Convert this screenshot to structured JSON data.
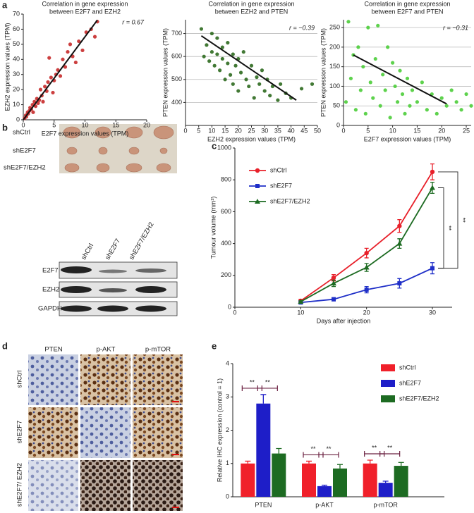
{
  "figure": {
    "panel_labels": [
      "a",
      "b",
      "c",
      "d",
      "e"
    ],
    "panel_b": {
      "row_labels": [
        "shCtrl",
        "shE2F7",
        "shE2F7/EZH2"
      ],
      "blot_columns": [
        "shCtrl",
        "shE2F7",
        "shE2F7/EZH2"
      ],
      "blot_rows": [
        "E2F7",
        "EZH2",
        "GAPDH"
      ]
    },
    "panel_d": {
      "columns": [
        "PTEN",
        "p-AKT",
        "p-mTOR"
      ],
      "rows": [
        "shCtrl",
        "shE2F7",
        "shE2F7/ EZH2"
      ]
    }
  },
  "chart_data": [
    {
      "type": "scatter",
      "title": [
        "Correlation in gene expression",
        "between E2F7 and EZH2"
      ],
      "xlabel": "E2F7 expression values (TPM)",
      "ylabel": "EZH2 expression values (TPM)",
      "annotation": "r = 0.67",
      "color": "#c62a2a",
      "grid": false,
      "xlim": [
        0,
        20
      ],
      "xticks": [
        0,
        5,
        10,
        15,
        20
      ],
      "ylim": [
        0,
        70
      ],
      "yticks": [
        0,
        10,
        20,
        30,
        40,
        50,
        60,
        70
      ],
      "x": [
        0.2,
        0.4,
        0.5,
        0.7,
        0.8,
        1,
        1.1,
        1.3,
        1.5,
        1.6,
        1.8,
        2,
        2.2,
        2.4,
        2.6,
        2.8,
        3,
        3.2,
        3.5,
        3.8,
        4,
        4.2,
        4.5,
        4.8,
        5,
        5.3,
        5.6,
        6,
        6.4,
        6.8,
        7.2,
        7.6,
        8,
        8.5,
        9,
        9.6,
        10.2,
        11,
        11.6,
        12
      ],
      "values": [
        1,
        3,
        2,
        5,
        4,
        6,
        8,
        7,
        10,
        5,
        12,
        9,
        14,
        11,
        13,
        20,
        16,
        12,
        22,
        19,
        25,
        41,
        28,
        18,
        26,
        30,
        33,
        29,
        40,
        35,
        45,
        50,
        42,
        38,
        52,
        46,
        58,
        60,
        55,
        65
      ],
      "trendline": {
        "x": [
          0,
          12
        ],
        "values": [
          0,
          66
        ]
      }
    },
    {
      "type": "scatter",
      "title": [
        "Correlation in gene expression",
        "between EZH2 and PTEN"
      ],
      "xlabel": "EZH2 expression values (TPM)",
      "ylabel": "PTEN expression values (TPM)",
      "annotation": "r = −0.39",
      "color": "#2d6a1f",
      "grid": true,
      "xlim": [
        0,
        50
      ],
      "xticks": [
        0,
        5,
        10,
        15,
        20,
        25,
        30,
        35,
        40,
        45,
        50
      ],
      "ylim": [
        300,
        760
      ],
      "yticks": [
        400,
        500,
        600,
        700
      ],
      "x": [
        6,
        7,
        8,
        9,
        10,
        10,
        11,
        12,
        12,
        13,
        14,
        14,
        15,
        16,
        16,
        17,
        18,
        18,
        19,
        20,
        20,
        21,
        22,
        23,
        24,
        25,
        26,
        27,
        28,
        29,
        30,
        31,
        32,
        33,
        35,
        36,
        38,
        40,
        44,
        48
      ],
      "values": [
        720,
        600,
        650,
        580,
        700,
        620,
        560,
        680,
        610,
        540,
        640,
        590,
        500,
        660,
        570,
        520,
        610,
        480,
        560,
        590,
        450,
        530,
        620,
        500,
        470,
        560,
        420,
        510,
        480,
        540,
        450,
        500,
        430,
        470,
        410,
        480,
        440,
        420,
        460,
        480
      ],
      "trendline": {
        "x": [
          6,
          42
        ],
        "values": [
          690,
          410
        ]
      }
    },
    {
      "type": "scatter",
      "title": [
        "Correlation in gene expression",
        "between E2F7 and PTEN"
      ],
      "xlabel": "E2F7 expression values (TPM)",
      "ylabel": "PTEN expression values (TPM)",
      "annotation": "r = −0.31",
      "color": "#4ccd3a",
      "grid": true,
      "xlim": [
        0,
        26
      ],
      "xticks": [
        0,
        5,
        10,
        15,
        20,
        25
      ],
      "ylim": [
        0,
        270
      ],
      "yticks": [
        0,
        50,
        100,
        150,
        200,
        250
      ],
      "x": [
        0.5,
        1,
        1.5,
        2,
        2.5,
        3,
        3.5,
        4,
        4.5,
        5,
        5.5,
        6,
        6.5,
        7,
        7.5,
        8,
        8.5,
        9,
        9.5,
        10,
        10.5,
        11,
        11.5,
        12,
        12.5,
        13,
        13.5,
        14,
        15,
        16,
        17,
        18,
        19,
        20,
        21,
        22,
        23,
        24,
        25,
        26
      ],
      "values": [
        60,
        265,
        120,
        180,
        40,
        200,
        90,
        150,
        30,
        250,
        110,
        70,
        170,
        255,
        50,
        130,
        90,
        200,
        20,
        160,
        100,
        60,
        140,
        80,
        30,
        120,
        50,
        90,
        60,
        110,
        40,
        80,
        30,
        70,
        50,
        90,
        60,
        40,
        80,
        50
      ],
      "trendline": {
        "x": [
          2,
          21
        ],
        "values": [
          180,
          55
        ]
      }
    },
    {
      "type": "line",
      "xlabel": "Days after injection",
      "ylabel": "Tumour volume (mm³)",
      "xlim": [
        0,
        33
      ],
      "xticks": [
        0,
        10,
        20,
        30
      ],
      "ylim": [
        0,
        1000
      ],
      "yticks": [
        0,
        200,
        400,
        600,
        800,
        1000
      ],
      "legend": "upper left",
      "annotations": [
        "**",
        "**"
      ],
      "x": [
        10,
        15,
        20,
        25,
        30
      ],
      "series": [
        {
          "name": "shCtrl",
          "color": "#e8202a",
          "marker": "circle",
          "values": [
            40,
            185,
            340,
            510,
            850
          ],
          "errors": [
            10,
            20,
            30,
            40,
            50
          ]
        },
        {
          "name": "shE2F7",
          "color": "#1f2fc8",
          "marker": "square",
          "values": [
            30,
            50,
            110,
            150,
            245
          ],
          "errors": [
            5,
            10,
            20,
            30,
            35
          ]
        },
        {
          "name": "shE2F7/EZH2",
          "color": "#1d6b22",
          "marker": "triangle",
          "values": [
            35,
            150,
            250,
            400,
            750
          ],
          "errors": [
            5,
            20,
            25,
            30,
            35
          ]
        }
      ]
    },
    {
      "type": "bar",
      "ylabel": "Relative IHC expression (control = 1)",
      "ylim": [
        0,
        4
      ],
      "yticks": [
        0,
        1,
        2,
        3,
        4
      ],
      "legend": "upper right",
      "annotations": [
        "**",
        "**",
        "**",
        "**",
        "**",
        "**"
      ],
      "categories": [
        "PTEN",
        "p-AKT",
        "p-mTOR"
      ],
      "series": [
        {
          "name": "shCtrl",
          "color": "#f0202a",
          "values": [
            1.0,
            1.0,
            1.0
          ],
          "errors": [
            0.07,
            0.07,
            0.1
          ]
        },
        {
          "name": "shE2F7",
          "color": "#1e1ec8",
          "values": [
            2.8,
            0.32,
            0.42
          ],
          "errors": [
            0.27,
            0.03,
            0.05
          ]
        },
        {
          "name": "shE2F7/EZH2",
          "color": "#1d6b22",
          "values": [
            1.3,
            0.85,
            0.93
          ],
          "errors": [
            0.15,
            0.12,
            0.1
          ]
        }
      ]
    }
  ]
}
